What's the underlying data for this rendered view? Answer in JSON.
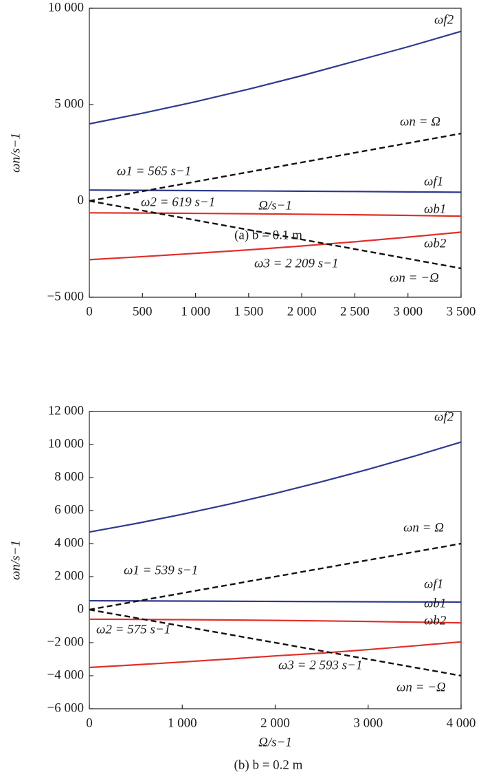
{
  "chart_data": [
    {
      "type": "line",
      "caption": "(a) b = 0.1 m",
      "x_label": "Ω/s−1",
      "y_label": "ωn/s−1",
      "x": [
        0,
        500,
        1000,
        1500,
        2000,
        2500,
        3000,
        3500
      ],
      "xlim": [
        0,
        3500
      ],
      "xticks": [
        0,
        500,
        {
          "value": 1000,
          "label": "1 000"
        },
        {
          "value": 1500,
          "label": "1 500"
        },
        {
          "value": 2000,
          "label": "2 000"
        },
        {
          "value": 2500,
          "label": "2 500"
        },
        {
          "value": 3000,
          "label": "3 000"
        },
        {
          "value": 3500,
          "label": "3 500"
        }
      ],
      "ylim": [
        -5000,
        10000
      ],
      "yticks": [
        {
          "value": -5000,
          "label": "−5 000"
        },
        0,
        {
          "value": 5000,
          "label": "5 000"
        },
        {
          "value": 10000,
          "label": "10 000"
        }
      ],
      "series": [
        {
          "name": "ωf2",
          "color": "#2e3a8c",
          "values": [
            4000,
            4550,
            5150,
            5800,
            6500,
            7250,
            8000,
            8800
          ]
        },
        {
          "name": "ωf1",
          "color": "#2e3a8c",
          "values": [
            565,
            550,
            535,
            520,
            505,
            490,
            470,
            450
          ]
        },
        {
          "name": "ωb1",
          "color": "#e0302a",
          "values": [
            -619,
            -630,
            -645,
            -665,
            -690,
            -720,
            -750,
            -790
          ]
        },
        {
          "name": "ωb2",
          "color": "#e0302a",
          "values": [
            -3050,
            -2890,
            -2720,
            -2540,
            -2340,
            -2120,
            -1880,
            -1620
          ]
        },
        {
          "name": "ωn = Ω",
          "color": "#111111",
          "dashed": true,
          "values": [
            0,
            500,
            1000,
            1500,
            2000,
            2500,
            3000,
            3500
          ]
        },
        {
          "name": "ωn = −Ω",
          "color": "#111111",
          "dashed": true,
          "values": [
            0,
            -500,
            -1000,
            -1500,
            -2000,
            -2500,
            -3000,
            -3500
          ]
        }
      ],
      "annotations": [
        "ω1 = 565 s−1",
        "ω2 = 619 s−1",
        "ω3 = 2 209 s−1"
      ]
    },
    {
      "type": "line",
      "caption": "(b) b = 0.2 m",
      "x_label": "Ω/s−1",
      "y_label": "ωn/s−1",
      "x": [
        0,
        500,
        1000,
        1500,
        2000,
        2500,
        3000,
        3500,
        4000
      ],
      "xlim": [
        0,
        4000
      ],
      "xticks": [
        0,
        {
          "value": 1000,
          "label": "1 000"
        },
        {
          "value": 2000,
          "label": "2 000"
        },
        {
          "value": 3000,
          "label": "3 000"
        },
        {
          "value": 4000,
          "label": "4 000"
        }
      ],
      "ylim": [
        -6000,
        12000
      ],
      "yticks": [
        {
          "value": -6000,
          "label": "−6 000"
        },
        {
          "value": -4000,
          "label": "−4 000"
        },
        {
          "value": -2000,
          "label": "−2 000"
        },
        0,
        {
          "value": 2000,
          "label": "2 000"
        },
        {
          "value": 4000,
          "label": "4 000"
        },
        {
          "value": 6000,
          "label": "6 000"
        },
        {
          "value": 8000,
          "label": "8 000"
        },
        {
          "value": 10000,
          "label": "10 000"
        },
        {
          "value": 12000,
          "label": "12 000"
        }
      ],
      "series": [
        {
          "name": "ωf2",
          "color": "#2e3a8c",
          "values": [
            4700,
            5213,
            5774,
            6383,
            7040,
            7745,
            8498,
            9299,
            10150
          ]
        },
        {
          "name": "ωf1",
          "color": "#2e3a8c",
          "values": [
            539,
            530,
            520,
            510,
            500,
            490,
            480,
            470,
            460
          ]
        },
        {
          "name": "ωb1",
          "color": "#e0302a",
          "values": [
            -575,
            -590,
            -605,
            -625,
            -650,
            -680,
            -715,
            -755,
            -800
          ]
        },
        {
          "name": "ωb2",
          "color": "#e0302a",
          "values": [
            -3500,
            -3340,
            -3170,
            -2990,
            -2800,
            -2630,
            -2420,
            -2190,
            -1950
          ]
        },
        {
          "name": "ωn = Ω",
          "color": "#111111",
          "dashed": true,
          "values": [
            0,
            500,
            1000,
            1500,
            2000,
            2500,
            3000,
            3500,
            4000
          ]
        },
        {
          "name": "ωn = −Ω",
          "color": "#111111",
          "dashed": true,
          "values": [
            0,
            -500,
            -1000,
            -1500,
            -2000,
            -2500,
            -3000,
            -3500,
            -4000
          ]
        }
      ],
      "annotations": [
        "ω1 = 539 s−1",
        "ω2 = 575 s−1",
        "ω3 = 2 593 s−1"
      ]
    }
  ]
}
